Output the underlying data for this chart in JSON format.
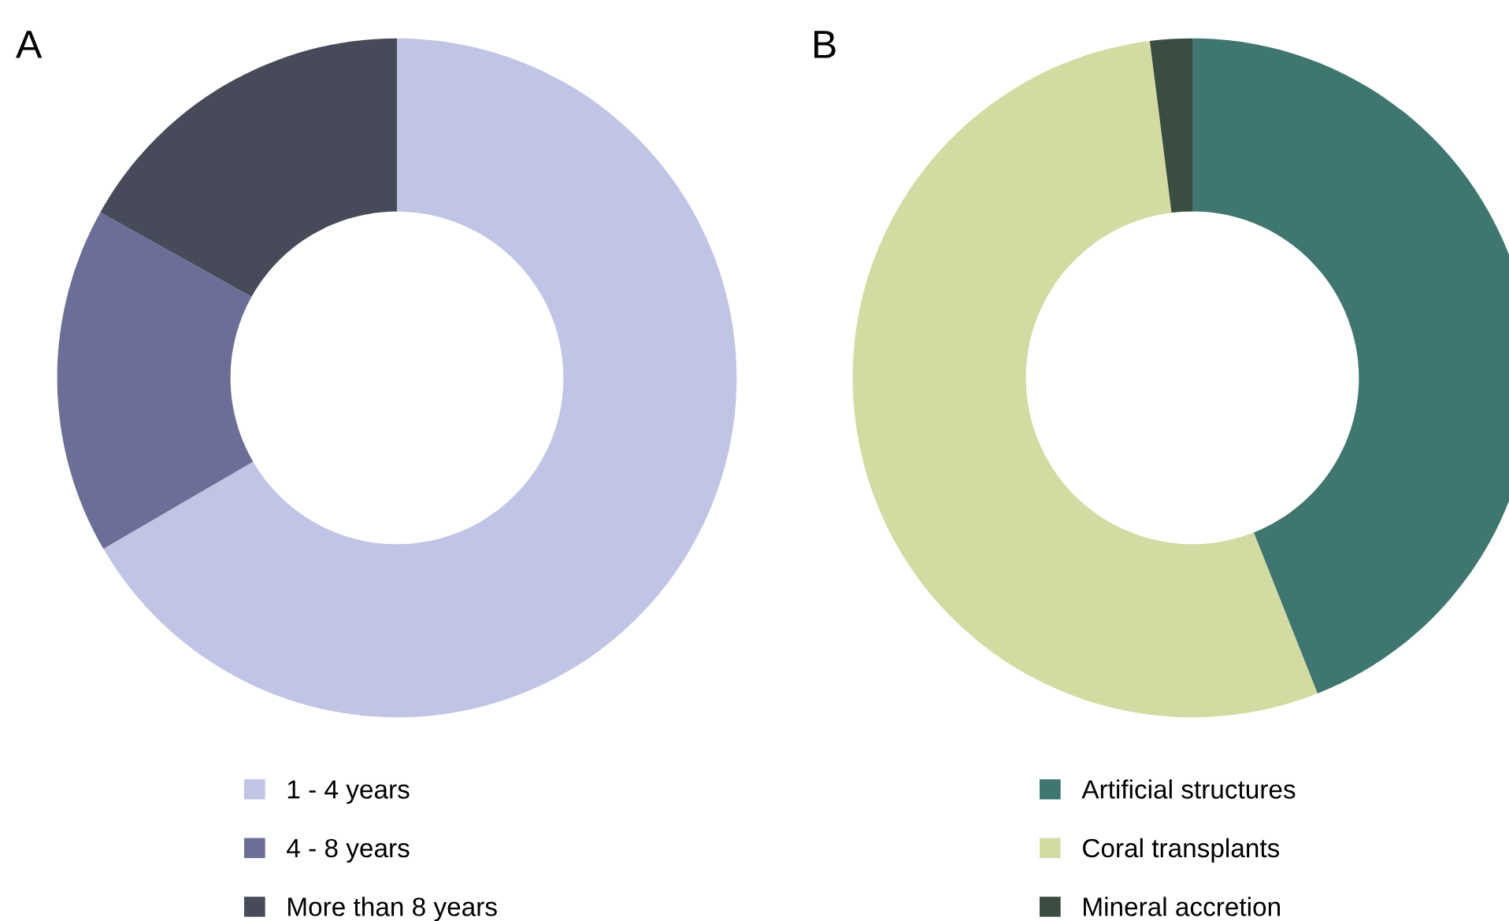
{
  "chart_data": [
    {
      "type": "donut",
      "title": "A",
      "categories": [
        "1 - 4 years",
        "4 - 8 years",
        "More than 8 years"
      ],
      "values": [
        66.6,
        16.5,
        16.9
      ],
      "colors": [
        "#c0c5e5",
        "#6b6f98",
        "#474a59"
      ],
      "legend": "bottom"
    },
    {
      "type": "donut",
      "title": "B",
      "categories": [
        "Artificial structures",
        "Coral transplants",
        "Mineral accretion"
      ],
      "values": [
        44,
        54,
        2
      ],
      "colors": [
        "#3f7770",
        "#d4dba2",
        "#3b4d41"
      ],
      "legend": "bottom"
    }
  ]
}
